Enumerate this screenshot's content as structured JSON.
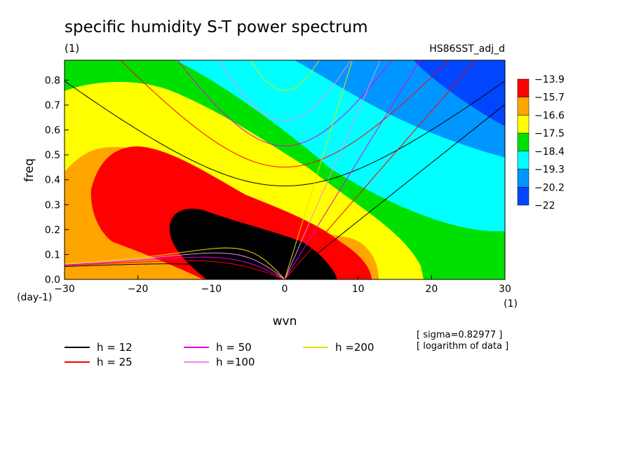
{
  "chart_data": {
    "type": "heatmap",
    "title": "specific humidity S-T power spectrum",
    "subtitle_left": "(1)",
    "subtitle_right": "HS86SST_adj_d",
    "xlabel": "wvn",
    "ylabel": "freq",
    "x_unit": "(1)",
    "y_unit": "(day-1)",
    "xlim": [
      -30,
      30
    ],
    "ylim": [
      0,
      0.88
    ],
    "x_ticks": [
      -30,
      -20,
      -10,
      0,
      10,
      20,
      30
    ],
    "y_ticks": [
      0.0,
      0.1,
      0.2,
      0.3,
      0.4,
      0.5,
      0.6,
      0.7,
      0.8
    ],
    "colorbar": {
      "labels": [
        "-13.9",
        "-15.7",
        "-16.6",
        "-17.5",
        "-18.4",
        "-19.3",
        "-20.2",
        "-22"
      ],
      "colors": [
        "#ff0000",
        "#ffa500",
        "#ffff00",
        "#00e000",
        "#00ffff",
        "#0096ff",
        "#0046ff"
      ]
    },
    "dispersion_curves": {
      "equivalent_depths": [
        12,
        25,
        50,
        100,
        200
      ],
      "labels": [
        "h = 12",
        "h = 25",
        "h = 50",
        "h =100",
        "h =200"
      ],
      "colors": [
        "#000000",
        "#ff0000",
        "#e000e0",
        "#ee88ee",
        "#e8e000"
      ]
    },
    "annotations": [
      "[ sigma=0.82977 ]",
      "[ logarithm of data ]"
    ]
  }
}
